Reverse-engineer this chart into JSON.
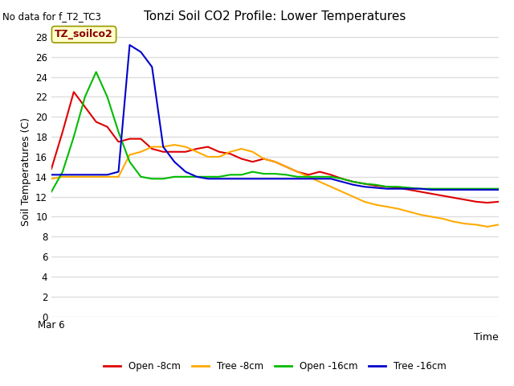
{
  "title": "Tonzi Soil CO2 Profile: Lower Temperatures",
  "no_data_text": "No data for f_T2_TC3",
  "xlabel": "Time",
  "ylabel": "Soil Temperatures (C)",
  "annotation_label": "TZ_soilco2",
  "ylim": [
    0,
    29
  ],
  "yticks": [
    0,
    2,
    4,
    6,
    8,
    10,
    12,
    14,
    16,
    18,
    20,
    22,
    24,
    26,
    28
  ],
  "xmin_label": "Mar 6",
  "figure_bg_color": "#ffffff",
  "plot_bg_color": "#ffffff",
  "grid_color": "#dddddd",
  "series": {
    "open_8cm": {
      "label": "Open -8cm",
      "color": "#dd0000",
      "x": [
        0,
        1,
        2,
        3,
        4,
        5,
        6,
        7,
        8,
        9,
        10,
        11,
        12,
        13,
        14,
        15,
        16,
        17,
        18,
        19,
        20,
        21,
        22,
        23,
        24,
        25,
        26,
        27,
        28,
        29,
        30,
        31,
        32,
        33,
        34,
        35,
        36,
        37,
        38,
        39,
        40
      ],
      "y": [
        14.8,
        18.5,
        22.5,
        21.0,
        19.5,
        19.0,
        17.5,
        17.8,
        17.8,
        16.8,
        16.5,
        16.5,
        16.5,
        16.8,
        17.0,
        16.5,
        16.3,
        15.8,
        15.5,
        15.8,
        15.5,
        15.0,
        14.5,
        14.2,
        14.5,
        14.2,
        13.8,
        13.5,
        13.3,
        13.1,
        13.0,
        12.9,
        12.7,
        12.5,
        12.3,
        12.1,
        11.9,
        11.7,
        11.5,
        11.4,
        11.5
      ]
    },
    "tree_8cm": {
      "label": "Tree -8cm",
      "color": "#ffaa00",
      "x": [
        0,
        1,
        2,
        3,
        4,
        5,
        6,
        7,
        8,
        9,
        10,
        11,
        12,
        13,
        14,
        15,
        16,
        17,
        18,
        19,
        20,
        21,
        22,
        23,
        24,
        25,
        26,
        27,
        28,
        29,
        30,
        31,
        32,
        33,
        34,
        35,
        36,
        37,
        38,
        39,
        40
      ],
      "y": [
        13.8,
        14.0,
        14.0,
        14.0,
        14.0,
        14.0,
        14.0,
        16.2,
        16.5,
        17.0,
        17.0,
        17.2,
        17.0,
        16.5,
        16.0,
        16.0,
        16.5,
        16.8,
        16.5,
        15.8,
        15.5,
        15.0,
        14.5,
        14.0,
        13.5,
        13.0,
        12.5,
        12.0,
        11.5,
        11.2,
        11.0,
        10.8,
        10.5,
        10.2,
        10.0,
        9.8,
        9.5,
        9.3,
        9.2,
        9.0,
        9.2
      ]
    },
    "open_16cm": {
      "label": "Open -16cm",
      "color": "#00bb00",
      "x": [
        0,
        1,
        2,
        3,
        4,
        5,
        6,
        7,
        8,
        9,
        10,
        11,
        12,
        13,
        14,
        15,
        16,
        17,
        18,
        19,
        20,
        21,
        22,
        23,
        24,
        25,
        26,
        27,
        28,
        29,
        30,
        31,
        32,
        33,
        34,
        35,
        36,
        37,
        38,
        39,
        40
      ],
      "y": [
        12.5,
        14.5,
        18.0,
        22.0,
        24.5,
        22.0,
        18.5,
        15.5,
        14.0,
        13.8,
        13.8,
        14.0,
        14.0,
        14.0,
        14.0,
        14.0,
        14.2,
        14.2,
        14.5,
        14.3,
        14.3,
        14.2,
        14.0,
        14.0,
        14.0,
        14.0,
        13.8,
        13.5,
        13.3,
        13.2,
        13.0,
        13.0,
        12.9,
        12.8,
        12.8,
        12.8,
        12.8,
        12.8,
        12.8,
        12.8,
        12.8
      ]
    },
    "tree_16cm": {
      "label": "Tree -16cm",
      "color": "#0000cc",
      "x": [
        0,
        1,
        2,
        3,
        4,
        5,
        6,
        7,
        8,
        9,
        10,
        11,
        12,
        13,
        14,
        15,
        16,
        17,
        18,
        19,
        20,
        21,
        22,
        23,
        24,
        25,
        26,
        27,
        28,
        29,
        30,
        31,
        32,
        33,
        34,
        35,
        36,
        37,
        38,
        39,
        40
      ],
      "y": [
        14.2,
        14.2,
        14.2,
        14.2,
        14.2,
        14.2,
        14.5,
        27.2,
        26.5,
        25.0,
        17.0,
        15.5,
        14.5,
        14.0,
        13.8,
        13.8,
        13.8,
        13.8,
        13.8,
        13.8,
        13.8,
        13.8,
        13.8,
        13.8,
        13.8,
        13.8,
        13.5,
        13.2,
        13.0,
        12.9,
        12.8,
        12.8,
        12.8,
        12.8,
        12.7,
        12.7,
        12.7,
        12.7,
        12.7,
        12.7,
        12.7
      ]
    }
  }
}
